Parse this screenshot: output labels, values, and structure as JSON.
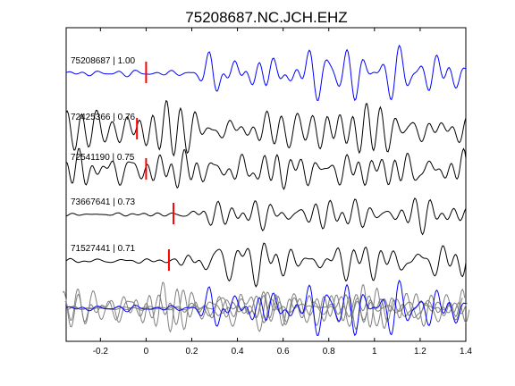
{
  "chart_data": {
    "type": "line",
    "title": "75208687.NC.JCH.EHZ",
    "xlabel": "",
    "ylabel": "",
    "xlim": [
      -0.35,
      1.4
    ],
    "xticks": [
      -0.2,
      0,
      0.2,
      0.4,
      0.6,
      0.8,
      1,
      1.2,
      1.4
    ],
    "xtick_labels": [
      "-0.2",
      "0",
      "0.2",
      "0.4",
      "0.6",
      "0.8",
      "1",
      "1.2",
      "1.4"
    ],
    "grid": false,
    "series": [
      {
        "name": "75208687 | 1.00",
        "color": "#0000ff",
        "pick_time": 0.0,
        "type": "template"
      },
      {
        "name": "72425366 | 0.76",
        "color": "#000000",
        "pick_time": -0.04
      },
      {
        "name": "72541190 | 0.75",
        "color": "#000000",
        "pick_time": 0.0
      },
      {
        "name": "73667641 | 0.73",
        "color": "#000000",
        "pick_time": 0.12
      },
      {
        "name": "71527441 | 0.71",
        "color": "#000000",
        "pick_time": 0.1
      }
    ],
    "stack": {
      "description_color_overlay": "#808080",
      "template_color": "#0000ff"
    },
    "pick_color": "#ff0000"
  }
}
